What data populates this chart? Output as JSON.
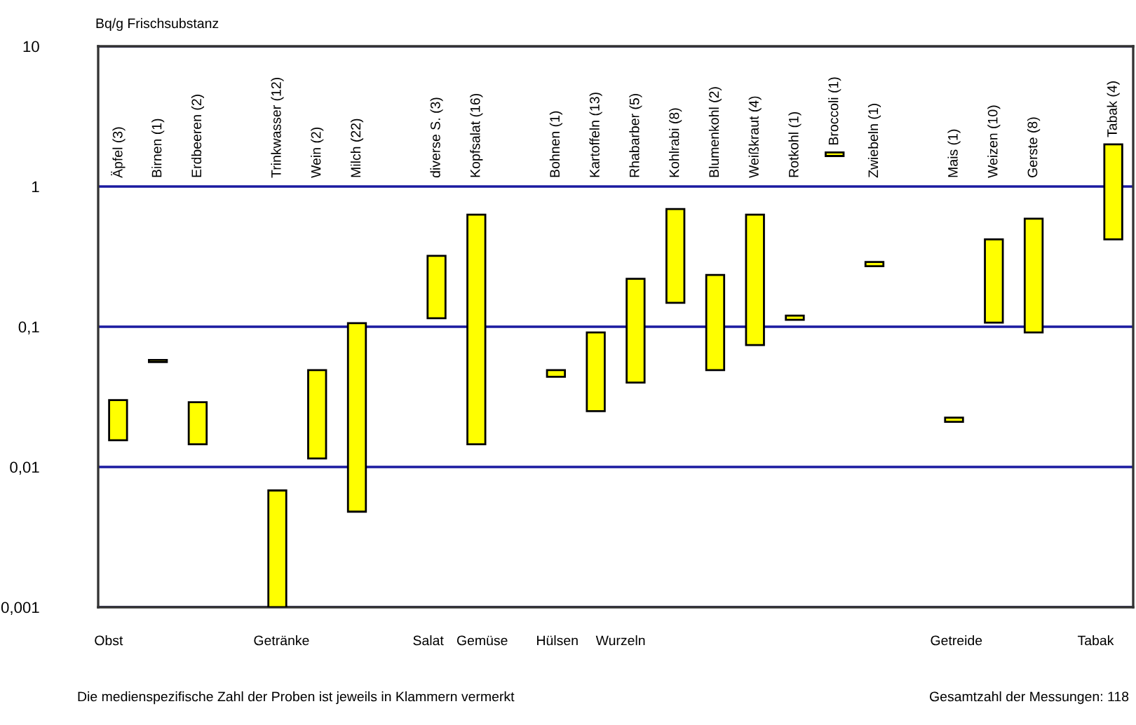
{
  "chart_data": {
    "type": "bar",
    "ylabel": "Bq/g Frischsubstanz",
    "categories": [
      "Äpfel (3)",
      "Birnen (1)",
      "Erdbeeren (2)",
      null,
      "Trinkwasser (12)",
      "Wein (2)",
      "Milch (22)",
      null,
      "diverse S. (3)",
      "Kopfsalat (16)",
      null,
      "Bohnen (1)",
      "Kartoffeln (13)",
      "Rhabarber (5)",
      "Kohlrabi (8)",
      "Blumenkohl (2)",
      "Weißkraut (4)",
      "Rotkohl (1)",
      "Broccoli (1)",
      "Zwiebeln (1)",
      null,
      "Mais (1)",
      "Weizen (10)",
      "Gerste (8)",
      null,
      "Tabak (4)"
    ],
    "base": [
      0.0155,
      0.056,
      0.0145,
      null,
      0.001,
      0.0115,
      0.0048,
      null,
      0.115,
      0.0145,
      null,
      0.044,
      0.025,
      0.04,
      0.148,
      0.049,
      0.074,
      0.112,
      1.65,
      0.27,
      null,
      0.021,
      0.107,
      0.091,
      null,
      0.42
    ],
    "values": [
      0.0145,
      0.002,
      0.0145,
      null,
      0.0058,
      0.0375,
      0.1012,
      null,
      0.205,
      0.6155,
      null,
      0.005,
      0.066,
      0.18,
      0.542,
      0.185,
      0.556,
      0.008,
      0.1,
      0.02,
      null,
      0.0015,
      0.313,
      0.499,
      null,
      1.58
    ],
    "color": "#ffff00",
    "log": "y",
    "ylim": [
      0.001,
      10
    ],
    "yticks": [
      {
        "value": 0.001,
        "label": "0,001"
      },
      {
        "value": 0.01,
        "label": "0,01"
      },
      {
        "value": 0.1,
        "label": "0,1"
      },
      1,
      10
    ],
    "grid": "y",
    "annotations": [
      "Obst",
      "Getränke",
      "Salat",
      "Gemüse",
      "Hülsen",
      "Wurzeln",
      "Getreide",
      "Tabak",
      "Die medienspezifische Zahl der Proben ist jeweils in Klammern vermerkt",
      "Gesamtzahl der Messungen: 118"
    ]
  }
}
